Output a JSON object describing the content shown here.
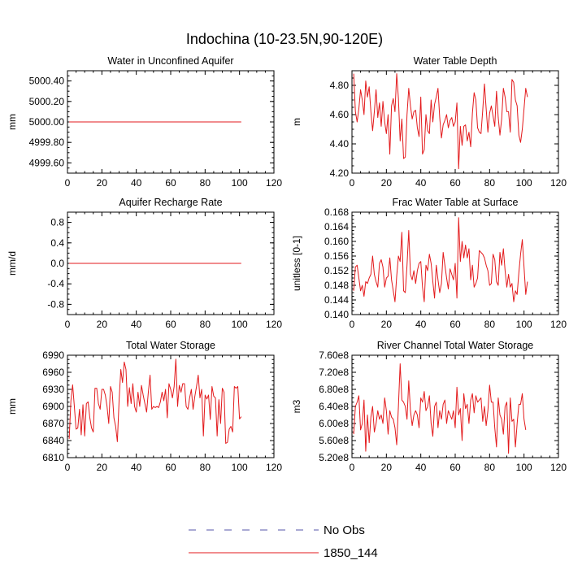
{
  "figure_title": "Indochina (10-23.5N,90-120E)",
  "legend": [
    {
      "label": "No Obs",
      "color": "#5555aa",
      "style": "dashed"
    },
    {
      "label": "1850_144",
      "color": "#e31a1c",
      "style": "solid"
    }
  ],
  "chart_data": [
    {
      "type": "line",
      "title": "Water in Unconfined Aquifer",
      "xlabel": "",
      "ylabel": "mm",
      "xlim": [
        0,
        120
      ],
      "ylim": [
        4999.5,
        5000.5
      ],
      "xticks": [
        "0",
        "20",
        "40",
        "60",
        "80",
        "100",
        "120"
      ],
      "yticks": [
        {
          "value": 4999.6,
          "label": "4999.60"
        },
        {
          "value": 4999.8,
          "label": "4999.80"
        },
        {
          "value": 5000.0,
          "label": "5000.00"
        },
        {
          "value": 5000.2,
          "label": "5000.20"
        },
        {
          "value": 5000.4,
          "label": "5000.40"
        }
      ],
      "series": [
        {
          "name": "1850_144",
          "x_start": 1,
          "x_end": 101,
          "constant": 5000.0
        }
      ]
    },
    {
      "type": "line",
      "title": "Water Table Depth",
      "xlabel": "",
      "ylabel": "m",
      "xlim": [
        0,
        120
      ],
      "ylim": [
        4.2,
        4.9
      ],
      "xticks": [
        "0",
        "20",
        "40",
        "60",
        "80",
        "100",
        "120"
      ],
      "yticks": [
        {
          "value": 4.2,
          "label": "4.20"
        },
        {
          "value": 4.4,
          "label": "4.40"
        },
        {
          "value": 4.6,
          "label": "4.60"
        },
        {
          "value": 4.8,
          "label": "4.80"
        }
      ],
      "series": [
        {
          "name": "1850_144",
          "x_start": 1,
          "values": [
            4.88,
            4.62,
            4.55,
            4.64,
            4.77,
            4.7,
            4.6,
            4.83,
            4.72,
            4.79,
            4.62,
            4.49,
            4.62,
            4.77,
            4.58,
            4.68,
            4.52,
            4.69,
            4.55,
            4.47,
            4.6,
            4.33,
            4.66,
            4.71,
            4.62,
            4.88,
            4.71,
            4.42,
            4.57,
            4.3,
            4.31,
            4.6,
            4.78,
            4.66,
            4.57,
            4.62,
            4.63,
            4.51,
            4.45,
            4.72,
            4.33,
            4.36,
            4.6,
            4.49,
            4.47,
            4.7,
            4.55,
            4.67,
            4.72,
            4.78,
            4.58,
            4.44,
            4.53,
            4.56,
            4.6,
            4.51,
            4.56,
            4.58,
            4.52,
            4.55,
            4.68,
            4.23,
            4.52,
            4.39,
            4.52,
            4.53,
            4.42,
            4.48,
            4.38,
            4.61,
            4.75,
            4.7,
            4.51,
            4.48,
            4.47,
            4.63,
            4.81,
            4.64,
            4.48,
            4.61,
            4.66,
            4.59,
            4.52,
            4.76,
            4.58,
            4.46,
            4.57,
            4.78,
            4.72,
            4.62,
            4.62,
            4.48,
            4.84,
            4.82,
            4.7,
            4.66,
            4.46,
            4.41,
            4.5,
            4.64,
            4.78,
            4.72
          ]
        }
      ]
    },
    {
      "type": "line",
      "title": "Aquifer Recharge Rate",
      "xlabel": "",
      "ylabel": "mm/d",
      "xlim": [
        0,
        120
      ],
      "ylim": [
        -1.0,
        1.0
      ],
      "xticks": [
        "0",
        "20",
        "40",
        "60",
        "80",
        "100",
        "120"
      ],
      "yticks": [
        {
          "value": -0.8,
          "label": "-0.8"
        },
        {
          "value": -0.4,
          "label": "-0.4"
        },
        {
          "value": 0.0,
          "label": "0.0"
        },
        {
          "value": 0.4,
          "label": "0.4"
        },
        {
          "value": 0.8,
          "label": "0.8"
        }
      ],
      "series": [
        {
          "name": "1850_144",
          "x_start": 1,
          "x_end": 101,
          "constant": 0.0
        }
      ]
    },
    {
      "type": "line",
      "title": "Frac Water Table at Surface",
      "xlabel": "",
      "ylabel": "unitless [0-1]",
      "xlim": [
        0,
        120
      ],
      "ylim": [
        0.14,
        0.168
      ],
      "xticks": [
        "0",
        "20",
        "40",
        "60",
        "80",
        "100",
        "120"
      ],
      "yticks": [
        {
          "value": 0.14,
          "label": "0.140"
        },
        {
          "value": 0.144,
          "label": "0.144"
        },
        {
          "value": 0.148,
          "label": "0.148"
        },
        {
          "value": 0.152,
          "label": "0.152"
        },
        {
          "value": 0.156,
          "label": "0.156"
        },
        {
          "value": 0.16,
          "label": "0.160"
        },
        {
          "value": 0.164,
          "label": "0.164"
        },
        {
          "value": 0.168,
          "label": "0.168"
        }
      ],
      "series": [
        {
          "name": "1850_144",
          "x_start": 1,
          "values": [
            0.1465,
            0.153,
            0.1535,
            0.15,
            0.1465,
            0.148,
            0.145,
            0.149,
            0.1485,
            0.15,
            0.151,
            0.156,
            0.151,
            0.149,
            0.1475,
            0.154,
            0.155,
            0.153,
            0.1475,
            0.15,
            0.1505,
            0.1555,
            0.1495,
            0.1465,
            0.1435,
            0.1505,
            0.156,
            0.1545,
            0.1625,
            0.1465,
            0.146,
            0.1535,
            0.163,
            0.151,
            0.1495,
            0.152,
            0.1485,
            0.152,
            0.154,
            0.1545,
            0.1475,
            0.1435,
            0.1535,
            0.152,
            0.1565,
            0.154,
            0.149,
            0.1445,
            0.1535,
            0.1495,
            0.146,
            0.1485,
            0.157,
            0.1535,
            0.15,
            0.147,
            0.1525,
            0.151,
            0.1495,
            0.154,
            0.1445,
            0.1665,
            0.1545,
            0.16,
            0.1555,
            0.159,
            0.1555,
            0.158,
            0.1495,
            0.1535,
            0.1475,
            0.1485,
            0.15,
            0.1575,
            0.157,
            0.1565,
            0.1555,
            0.1535,
            0.152,
            0.148,
            0.1485,
            0.1565,
            0.155,
            0.149,
            0.148,
            0.157,
            0.1535,
            0.158,
            0.152,
            0.1475,
            0.151,
            0.1475,
            0.1485,
            0.1435,
            0.1465,
            0.1455,
            0.1515,
            0.1565,
            0.1605,
            0.153,
            0.1455,
            0.149
          ]
        }
      ]
    },
    {
      "type": "line",
      "title": "Total Water Storage",
      "xlabel": "",
      "ylabel": "mm",
      "xlim": [
        0,
        120
      ],
      "ylim": [
        6810,
        6990
      ],
      "xticks": [
        "0",
        "20",
        "40",
        "60",
        "80",
        "100",
        "120"
      ],
      "yticks": [
        {
          "value": 6810,
          "label": "6810"
        },
        {
          "value": 6840,
          "label": "6840"
        },
        {
          "value": 6870,
          "label": "6870"
        },
        {
          "value": 6900,
          "label": "6900"
        },
        {
          "value": 6930,
          "label": "6930"
        },
        {
          "value": 6960,
          "label": "6960"
        },
        {
          "value": 6990,
          "label": "6990"
        }
      ],
      "series": [
        {
          "name": "1850_144",
          "x_start": 1,
          "values": [
            6843,
            6910,
            6938,
            6900,
            6860,
            6862,
            6895,
            6850,
            6903,
            6848,
            6905,
            6908,
            6880,
            6862,
            6855,
            6932,
            6932,
            6905,
            6895,
            6930,
            6930,
            6920,
            6900,
            6870,
            6935,
            6925,
            6880,
            6865,
            6838,
            6910,
            6965,
            6942,
            6978,
            6965,
            6900,
            6933,
            6905,
            6940,
            6900,
            6890,
            6925,
            6900,
            6937,
            6920,
            6905,
            6890,
            6925,
            6955,
            6895,
            6900,
            6898,
            6900,
            6898,
            6908,
            6925,
            6910,
            6930,
            6880,
            6940,
            6930,
            6915,
            6935,
            6983,
            6900,
            6937,
            6925,
            6940,
            6940,
            6900,
            6895,
            6915,
            6930,
            6895,
            6917,
            6935,
            6955,
            6915,
            6930,
            6848,
            6920,
            6913,
            6920,
            6877,
            6935,
            6918,
            6915,
            6848,
            6912,
            6870,
            6932,
            6925,
            6835,
            6837,
            6860,
            6865,
            6855,
            6935,
            6932,
            6935,
            6878,
            6882
          ]
        }
      ]
    },
    {
      "type": "line",
      "title": "River Channel Total Water Storage",
      "xlabel": "",
      "ylabel": "m3",
      "xlim": [
        0,
        120
      ],
      "ylim": [
        520000000.0,
        760000000.0
      ],
      "xticks": [
        "0",
        "20",
        "40",
        "60",
        "80",
        "100",
        "120"
      ],
      "yticks": [
        {
          "value": 520000000.0,
          "label": "5.20e8"
        },
        {
          "value": 560000000.0,
          "label": "5.60e8"
        },
        {
          "value": 600000000.0,
          "label": "6.00e8"
        },
        {
          "value": 640000000.0,
          "label": "6.40e8"
        },
        {
          "value": 680000000.0,
          "label": "6.80e8"
        },
        {
          "value": 720000000.0,
          "label": "7.20e8"
        },
        {
          "value": 760000000.0,
          "label": "7.60e8"
        }
      ],
      "series": [
        {
          "name": "1850_144",
          "x_start": 1,
          "values": [
            575000000.0,
            640000000.0,
            650000000.0,
            665000000.0,
            585000000.0,
            600000000.0,
            655000000.0,
            535000000.0,
            620000000.0,
            555000000.0,
            615000000.0,
            640000000.0,
            580000000.0,
            600000000.0,
            630000000.0,
            610000000.0,
            620000000.0,
            600000000.0,
            660000000.0,
            630000000.0,
            575000000.0,
            630000000.0,
            615000000.0,
            610000000.0,
            590000000.0,
            550000000.0,
            640000000.0,
            740000000.0,
            655000000.0,
            650000000.0,
            640000000.0,
            610000000.0,
            700000000.0,
            630000000.0,
            595000000.0,
            620000000.0,
            630000000.0,
            620000000.0,
            590000000.0,
            660000000.0,
            650000000.0,
            675000000.0,
            630000000.0,
            640000000.0,
            665000000.0,
            600000000.0,
            570000000.0,
            640000000.0,
            650000000.0,
            590000000.0,
            630000000.0,
            610000000.0,
            645000000.0,
            655000000.0,
            600000000.0,
            630000000.0,
            620000000.0,
            610000000.0,
            630000000.0,
            590000000.0,
            685000000.0,
            620000000.0,
            635000000.0,
            560000000.0,
            670000000.0,
            635000000.0,
            645000000.0,
            600000000.0,
            655000000.0,
            670000000.0,
            625000000.0,
            665000000.0,
            650000000.0,
            655000000.0,
            660000000.0,
            605000000.0,
            640000000.0,
            595000000.0,
            630000000.0,
            690000000.0,
            650000000.0,
            650000000.0,
            590000000.0,
            545000000.0,
            660000000.0,
            620000000.0,
            610000000.0,
            575000000.0,
            640000000.0,
            650000000.0,
            530000000.0,
            660000000.0,
            605000000.0,
            610000000.0,
            545000000.0,
            600000000.0,
            645000000.0,
            645000000.0,
            670000000.0,
            610000000.0,
            585000000.0
          ]
        }
      ]
    }
  ]
}
